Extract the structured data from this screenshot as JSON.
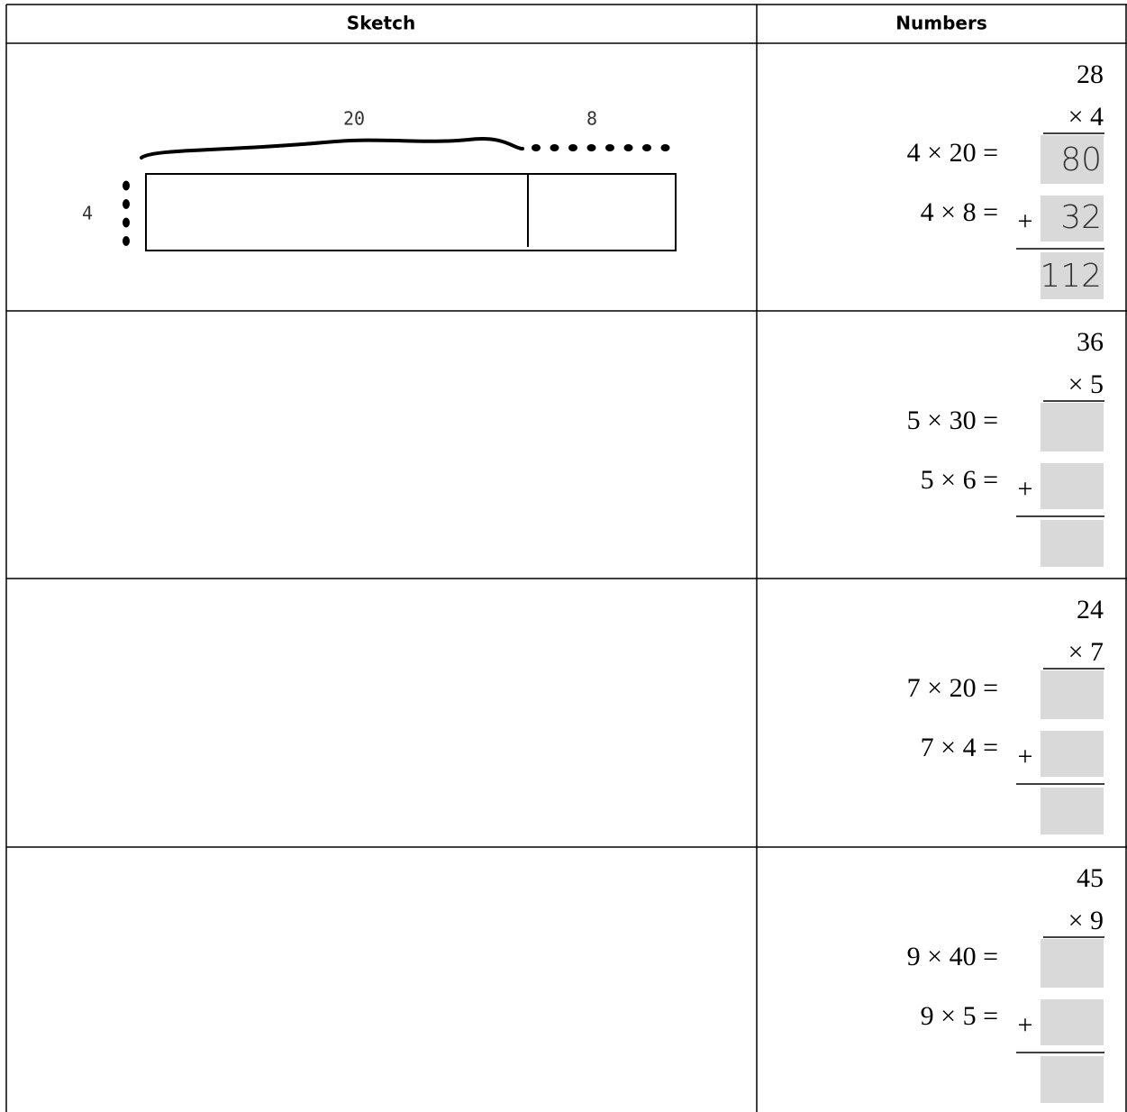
{
  "header": {
    "columns": [
      "Sketch",
      "Numbers"
    ]
  },
  "rows": [
    {
      "sketch": {
        "top_labels": [
          "20",
          "8"
        ],
        "side_label": "4"
      },
      "numbers": {
        "top": "28",
        "multiplier": "× 4",
        "lines": [
          "4 × 20 =",
          "4 × 8 ="
        ],
        "plus": "+",
        "answers": [
          "80",
          "32",
          "112"
        ]
      }
    },
    {
      "numbers": {
        "top": "36",
        "multiplier": "× 5",
        "lines": [
          "5 × 30 =",
          "5 × 6 ="
        ],
        "plus": "+"
      }
    },
    {
      "numbers": {
        "top": "24",
        "multiplier": "× 7",
        "lines": [
          "7 × 20 =",
          "7 × 4 ="
        ],
        "plus": "+"
      }
    },
    {
      "numbers": {
        "top": "45",
        "multiplier": "× 9",
        "lines": [
          "9 × 40 =",
          "9 × 5 ="
        ],
        "plus": "+"
      }
    }
  ]
}
